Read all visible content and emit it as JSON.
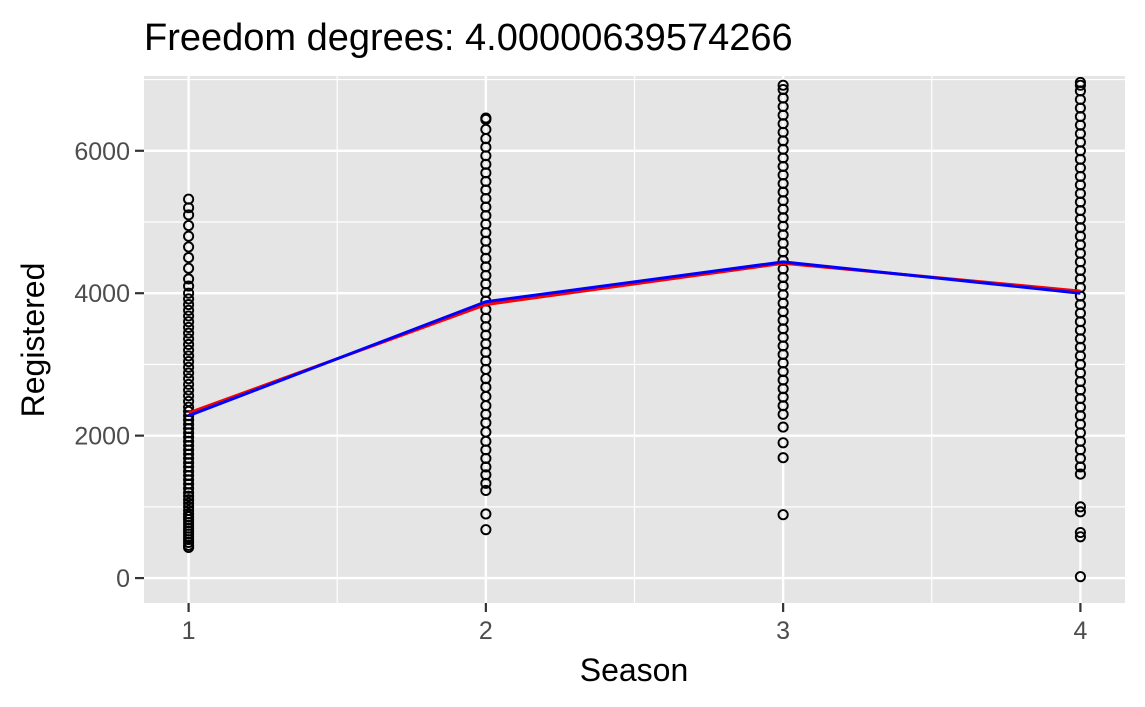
{
  "chart_data": {
    "type": "scatter",
    "title": "Freedom degrees: 4.00000639574266",
    "xlabel": "Season",
    "ylabel": "Registered",
    "xlim": [
      0.85,
      4.15
    ],
    "ylim": [
      -350,
      7050
    ],
    "x_ticks": [
      1,
      2,
      3,
      4
    ],
    "y_ticks": [
      0,
      2000,
      4000,
      6000
    ],
    "x_tick_labels": [
      "1",
      "2",
      "3",
      "4"
    ],
    "y_tick_labels": [
      "0",
      "2000",
      "4000",
      "6000"
    ],
    "grid": true,
    "legend": "none",
    "colors": {
      "panel_background": "#e5e5e5",
      "grid_line": "#ffffff",
      "points": "#000000",
      "fit_red": "#ff0000",
      "fit_blue": "#0000ff"
    },
    "points": [
      {
        "x": 1,
        "values": [
          430,
          460,
          500,
          540,
          580,
          620,
          660,
          700,
          740,
          780,
          820,
          860,
          900,
          950,
          1000,
          1050,
          1100,
          1150,
          1200,
          1260,
          1320,
          1380,
          1440,
          1500,
          1560,
          1620,
          1680,
          1740,
          1800,
          1860,
          1920,
          1980,
          2040,
          2100,
          2160,
          2220,
          2280,
          2340,
          2400,
          2480,
          2560,
          2640,
          2720,
          2800,
          2880,
          2960,
          3040,
          3120,
          3200,
          3280,
          3360,
          3440,
          3520,
          3600,
          3680,
          3760,
          3840,
          3920,
          4000,
          4100,
          4200,
          4350,
          4500,
          4650,
          4800,
          4950,
          5100,
          5200,
          5320
        ]
      },
      {
        "x": 2,
        "values": [
          680,
          900,
          1230,
          1330,
          1450,
          1560,
          1680,
          1800,
          1920,
          2050,
          2180,
          2300,
          2420,
          2550,
          2680,
          2800,
          2930,
          3050,
          3170,
          3290,
          3410,
          3530,
          3650,
          3770,
          3890,
          4010,
          4130,
          4250,
          4370,
          4490,
          4610,
          4730,
          4850,
          4970,
          5090,
          5210,
          5330,
          5450,
          5570,
          5690,
          5810,
          5930,
          6050,
          6170,
          6300,
          6440,
          6460
        ]
      },
      {
        "x": 3,
        "values": [
          890,
          1690,
          1900,
          2120,
          2300,
          2420,
          2540,
          2660,
          2780,
          2900,
          3020,
          3140,
          3260,
          3380,
          3500,
          3620,
          3740,
          3860,
          3980,
          4100,
          4220,
          4340,
          4460,
          4580,
          4700,
          4820,
          4940,
          5060,
          5180,
          5300,
          5420,
          5540,
          5660,
          5780,
          5900,
          6020,
          6140,
          6260,
          6380,
          6500,
          6620,
          6740,
          6860,
          6920
        ]
      },
      {
        "x": 4,
        "values": [
          20,
          580,
          640,
          930,
          1000,
          1460,
          1560,
          1680,
          1800,
          1920,
          2040,
          2160,
          2280,
          2400,
          2520,
          2640,
          2760,
          2880,
          3000,
          3120,
          3240,
          3360,
          3480,
          3600,
          3720,
          3840,
          3960,
          4080,
          4200,
          4320,
          4440,
          4560,
          4680,
          4800,
          4920,
          5040,
          5160,
          5280,
          5400,
          5520,
          5640,
          5760,
          5880,
          6000,
          6120,
          6240,
          6360,
          6480,
          6600,
          6720,
          6840,
          6920,
          6960
        ]
      }
    ],
    "series": [
      {
        "type": "line",
        "color": "#ff0000",
        "x": [
          1,
          2,
          3,
          4
        ],
        "values": [
          2320,
          3840,
          4420,
          4030
        ]
      },
      {
        "type": "line",
        "color": "#0000ff",
        "x": [
          1,
          2,
          3,
          4
        ],
        "values": [
          2280,
          3880,
          4440,
          4000
        ]
      }
    ]
  }
}
